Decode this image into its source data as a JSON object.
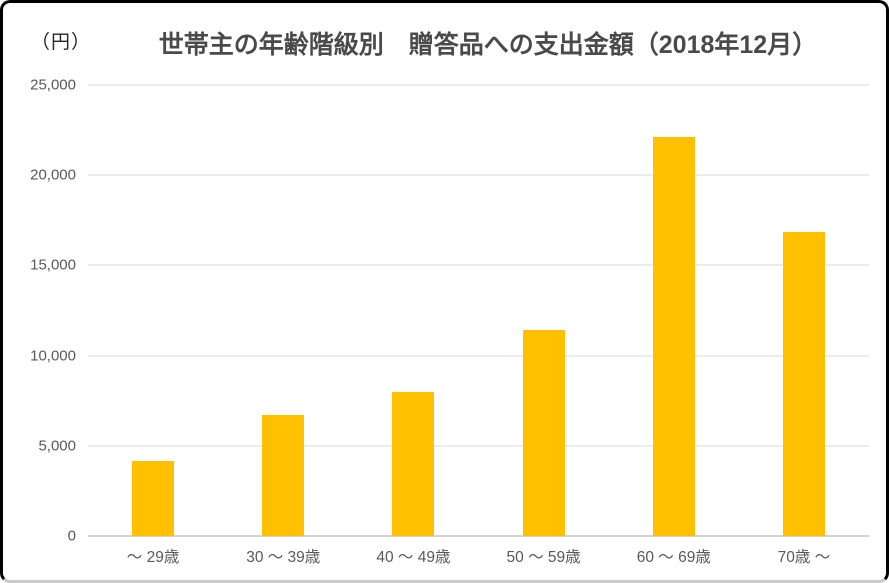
{
  "chart_data": {
    "type": "bar",
    "title": "世帯主の年齢階級別　贈答品への支出金額（2018年12月）",
    "unit_label": "（円）",
    "categories": [
      "～ 29歳",
      "30 ～ 39歳",
      "40 ～ 49歳",
      "50 ～ 59歳",
      "60 ～ 69歳",
      "70歳 ～"
    ],
    "values": [
      4150,
      6700,
      8000,
      11400,
      22100,
      16850
    ],
    "xlabel": "",
    "ylabel": "円",
    "ylim": [
      0,
      25000
    ],
    "ytick_interval": 5000,
    "ytick_labels_bottom_up": [
      "0",
      "5,000",
      "10,000",
      "15,000",
      "20,000",
      "25,000"
    ],
    "grid": true,
    "legend": false,
    "colors": {
      "bar": "#FFC000",
      "gridline": "#D9D9D9",
      "axis_baseline": "#D2D2D2",
      "tick_text": "#595959",
      "title_text": "#4A4A4A",
      "unit_text": "#262626",
      "border": "#000000",
      "background": "#FFFFFF"
    }
  }
}
